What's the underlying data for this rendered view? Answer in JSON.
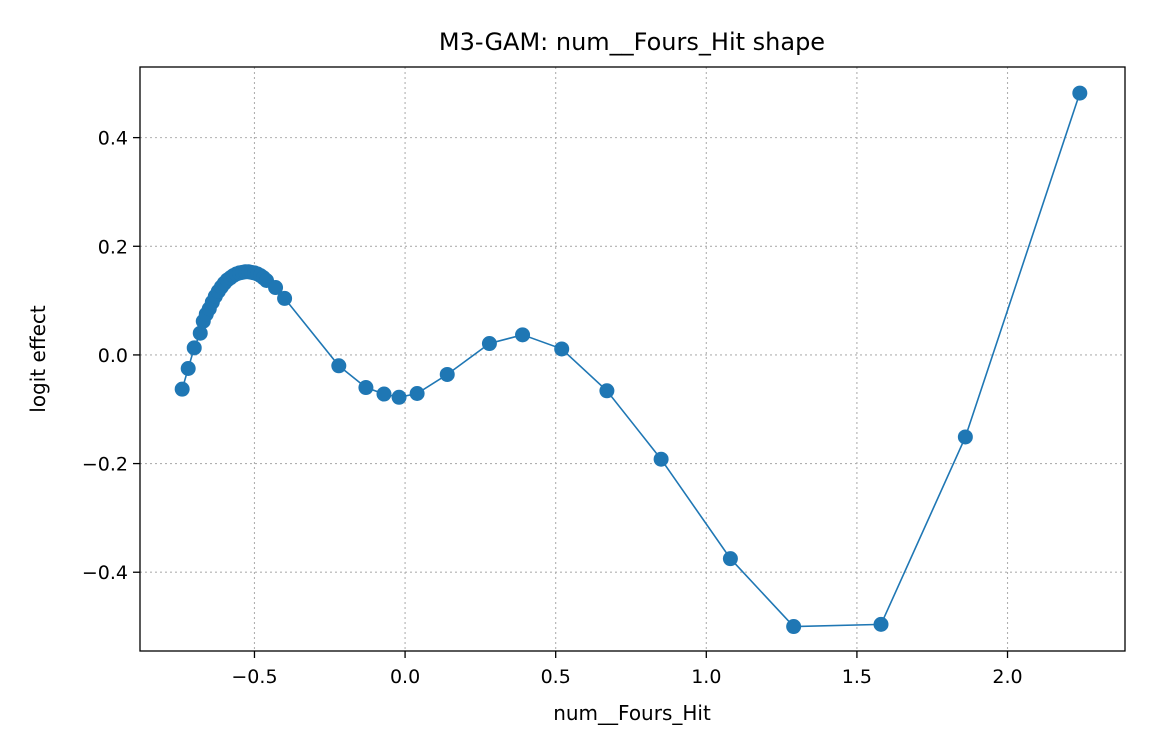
{
  "chart_data": {
    "type": "line",
    "title": "M3-GAM: num__Fours_Hit shape",
    "xlabel": "num__Fours_Hit",
    "ylabel": "logit effect",
    "xlim": [
      -0.88,
      2.39
    ],
    "ylim": [
      -0.545,
      0.53
    ],
    "xticks": [
      -0.5,
      0.0,
      0.5,
      1.0,
      1.5,
      2.0
    ],
    "xtick_labels": [
      "−0.5",
      "0.0",
      "0.5",
      "1.0",
      "1.5",
      "2.0"
    ],
    "yticks": [
      -0.4,
      -0.2,
      0.0,
      0.2,
      0.4
    ],
    "ytick_labels": [
      "−0.4",
      "−0.2",
      "0.0",
      "0.2",
      "0.4"
    ],
    "grid": true,
    "color": "#1f77b4",
    "marker": "circle",
    "x": [
      -0.74,
      -0.72,
      -0.7,
      -0.68,
      -0.67,
      -0.66,
      -0.65,
      -0.64,
      -0.63,
      -0.62,
      -0.61,
      -0.6,
      -0.59,
      -0.58,
      -0.57,
      -0.56,
      -0.55,
      -0.54,
      -0.53,
      -0.52,
      -0.51,
      -0.5,
      -0.49,
      -0.48,
      -0.47,
      -0.46,
      -0.43,
      -0.4,
      -0.22,
      -0.13,
      -0.07,
      -0.02,
      0.04,
      0.14,
      0.28,
      0.39,
      0.52,
      0.67,
      0.85,
      1.08,
      1.29,
      1.58,
      1.86,
      2.24
    ],
    "y": [
      -0.063,
      -0.025,
      0.013,
      0.04,
      0.062,
      0.075,
      0.085,
      0.097,
      0.108,
      0.117,
      0.125,
      0.132,
      0.138,
      0.142,
      0.146,
      0.149,
      0.151,
      0.152,
      0.153,
      0.153,
      0.152,
      0.151,
      0.149,
      0.146,
      0.142,
      0.137,
      0.124,
      0.104,
      -0.02,
      -0.06,
      -0.072,
      -0.078,
      -0.071,
      -0.036,
      0.021,
      0.037,
      0.011,
      -0.066,
      -0.192,
      -0.375,
      -0.5,
      -0.496,
      -0.151,
      0.482
    ]
  }
}
